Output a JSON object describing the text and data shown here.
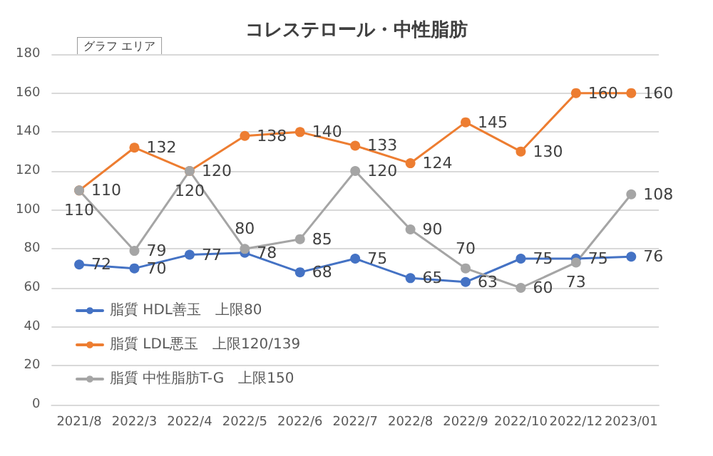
{
  "chart_data": {
    "type": "line",
    "title": "コレステロール・中性脂肪",
    "annotations": [
      "グラフ エリア"
    ],
    "categories": [
      "2021/8",
      "2022/3",
      "2022/4",
      "2022/5",
      "2022/6",
      "2022/7",
      "2022/8",
      "2022/9",
      "2022/10",
      "2022/12",
      "2023/01"
    ],
    "series": [
      {
        "name": "脂質 HDL善玉　上限80",
        "color": "#4472c4",
        "values": [
          72,
          70,
          77,
          78,
          68,
          75,
          65,
          63,
          75,
          75,
          76
        ]
      },
      {
        "name": "脂質 LDL悪玉　上限120/139",
        "color": "#ed7d31",
        "values": [
          110,
          132,
          120,
          138,
          140,
          133,
          124,
          145,
          130,
          160,
          160
        ]
      },
      {
        "name": "脂質 中性脂肪T-G　上限150",
        "color": "#a5a5a5",
        "values": [
          110,
          79,
          120,
          80,
          85,
          120,
          90,
          70,
          60,
          73,
          108
        ]
      }
    ],
    "ylim": [
      0,
      180
    ],
    "yticks": [
      0,
      20,
      40,
      60,
      80,
      100,
      120,
      140,
      160,
      180
    ],
    "grid": "y",
    "legend": "bottom left",
    "marker": "circle",
    "line_style": "solid",
    "data_labels": true
  }
}
